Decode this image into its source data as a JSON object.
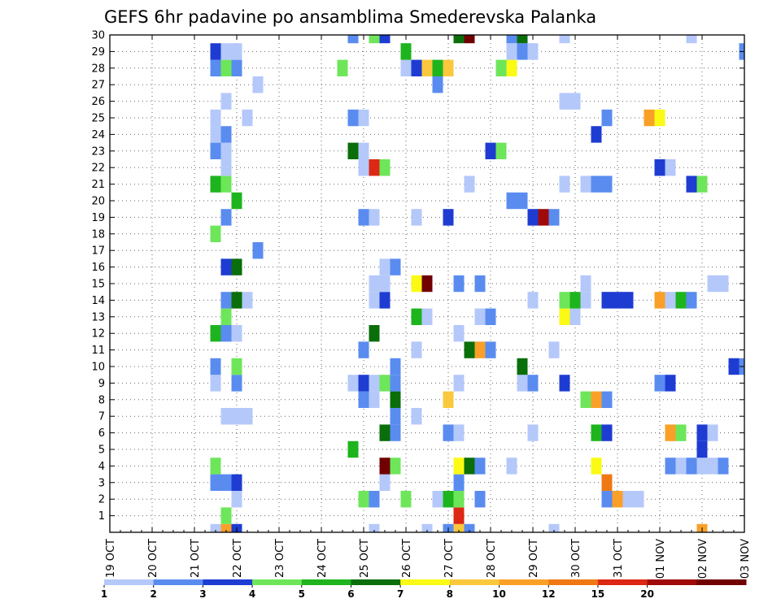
{
  "chart_data": {
    "type": "heatmap",
    "title": "GEFS 6hr padavine po ansamblima Smederevska Palanka",
    "xlabel": "",
    "ylabel": "",
    "x_ticks": [
      "19 OCT",
      "20 OCT",
      "21 OCT",
      "22 OCT",
      "23 OCT",
      "24 OCT",
      "25 OCT",
      "26 OCT",
      "27 OCT",
      "28 OCT",
      "29 OCT",
      "30 OCT",
      "31 OCT",
      "01 NOV",
      "02 NOV",
      "03 NOV"
    ],
    "y_ticks": [
      "1",
      "2",
      "3",
      "4",
      "5",
      "6",
      "7",
      "8",
      "9",
      "10",
      "11",
      "12",
      "13",
      "14",
      "15",
      "16",
      "17",
      "18",
      "19",
      "20",
      "21",
      "22",
      "23",
      "24",
      "25",
      "26",
      "27",
      "28",
      "29",
      "30"
    ],
    "xlim": [
      0,
      15
    ],
    "ylim": [
      0,
      30
    ],
    "x_unit": "days from 19 OCT",
    "y_unit": "ensemble member",
    "grid": true,
    "legend": {
      "placement": "bottom",
      "tick_labels": [
        "1",
        "2",
        "3",
        "4",
        "5",
        "6",
        "7",
        "8",
        "10",
        "12",
        "15",
        "20"
      ],
      "colors": [
        "#b4c8fa",
        "#5a8cf0",
        "#1e3cd2",
        "#6ee65a",
        "#1eb41e",
        "#0a6e0a",
        "#fafa14",
        "#fac83c",
        "#faa028",
        "#f07814",
        "#dc2814",
        "#a00a0a",
        "#700000"
      ]
    },
    "cells": [
      [
        2.5,
        0,
        0
      ],
      [
        2.75,
        0,
        8
      ],
      [
        3.0,
        0,
        2
      ],
      [
        6.25,
        0,
        0
      ],
      [
        7.5,
        0,
        0
      ],
      [
        8.0,
        0,
        1
      ],
      [
        8.25,
        0,
        7
      ],
      [
        8.5,
        0,
        1
      ],
      [
        10.5,
        0,
        0
      ],
      [
        14.0,
        0,
        8
      ],
      [
        2.75,
        1,
        3
      ],
      [
        8.25,
        1,
        10
      ],
      [
        3.0,
        2,
        0
      ],
      [
        6.0,
        2,
        3
      ],
      [
        6.25,
        2,
        1
      ],
      [
        7.0,
        2,
        3
      ],
      [
        7.75,
        2,
        0
      ],
      [
        8.0,
        2,
        4
      ],
      [
        8.25,
        2,
        3
      ],
      [
        8.75,
        2,
        1
      ],
      [
        11.75,
        2,
        1
      ],
      [
        12.0,
        2,
        8
      ],
      [
        12.25,
        2,
        0
      ],
      [
        12.5,
        2,
        0
      ],
      [
        2.5,
        3,
        1
      ],
      [
        2.75,
        3,
        1
      ],
      [
        3.0,
        3,
        2
      ],
      [
        6.5,
        3,
        0
      ],
      [
        8.25,
        3,
        1
      ],
      [
        11.75,
        3,
        9
      ],
      [
        2.5,
        4,
        3
      ],
      [
        6.5,
        4,
        12
      ],
      [
        6.75,
        4,
        3
      ],
      [
        8.25,
        4,
        6
      ],
      [
        8.5,
        4,
        5
      ],
      [
        8.75,
        4,
        1
      ],
      [
        9.5,
        4,
        0
      ],
      [
        11.5,
        4,
        6
      ],
      [
        13.25,
        4,
        1
      ],
      [
        13.5,
        4,
        0
      ],
      [
        13.75,
        4,
        1
      ],
      [
        14.0,
        4,
        0
      ],
      [
        14.25,
        4,
        0
      ],
      [
        14.5,
        4,
        1
      ],
      [
        5.75,
        5,
        4
      ],
      [
        14.0,
        5,
        2
      ],
      [
        6.5,
        6,
        5
      ],
      [
        6.75,
        6,
        1
      ],
      [
        8.0,
        6,
        1
      ],
      [
        8.25,
        6,
        0
      ],
      [
        10.0,
        6,
        0
      ],
      [
        11.5,
        6,
        4
      ],
      [
        11.75,
        6,
        2
      ],
      [
        13.25,
        6,
        8
      ],
      [
        13.5,
        6,
        3
      ],
      [
        14.0,
        6,
        2
      ],
      [
        14.25,
        6,
        0
      ],
      [
        2.75,
        7,
        0
      ],
      [
        3.0,
        7,
        0
      ],
      [
        3.25,
        7,
        0
      ],
      [
        6.75,
        7,
        1
      ],
      [
        7.25,
        7,
        0
      ],
      [
        6.0,
        8,
        1
      ],
      [
        6.25,
        8,
        0
      ],
      [
        6.75,
        8,
        5
      ],
      [
        8.0,
        8,
        7
      ],
      [
        11.25,
        8,
        3
      ],
      [
        11.5,
        8,
        8
      ],
      [
        11.75,
        8,
        1
      ],
      [
        2.5,
        9,
        0
      ],
      [
        3.0,
        9,
        1
      ],
      [
        5.75,
        9,
        0
      ],
      [
        6.0,
        9,
        2
      ],
      [
        6.25,
        9,
        0
      ],
      [
        6.5,
        9,
        3
      ],
      [
        6.75,
        9,
        1
      ],
      [
        8.25,
        9,
        0
      ],
      [
        9.75,
        9,
        0
      ],
      [
        10.0,
        9,
        1
      ],
      [
        10.75,
        9,
        2
      ],
      [
        13.0,
        9,
        1
      ],
      [
        13.25,
        9,
        2
      ],
      [
        2.5,
        10,
        1
      ],
      [
        3.0,
        10,
        3
      ],
      [
        6.75,
        10,
        1
      ],
      [
        9.75,
        10,
        5
      ],
      [
        14.75,
        10,
        2
      ],
      [
        15.0,
        10,
        1
      ],
      [
        6.0,
        11,
        1
      ],
      [
        7.25,
        11,
        0
      ],
      [
        8.5,
        11,
        5
      ],
      [
        8.75,
        11,
        8
      ],
      [
        9.0,
        11,
        1
      ],
      [
        10.5,
        11,
        0
      ],
      [
        2.5,
        12,
        4
      ],
      [
        2.75,
        12,
        1
      ],
      [
        3.0,
        12,
        0
      ],
      [
        6.25,
        12,
        5
      ],
      [
        8.25,
        12,
        0
      ],
      [
        2.75,
        13,
        3
      ],
      [
        7.25,
        13,
        4
      ],
      [
        7.5,
        13,
        0
      ],
      [
        8.75,
        13,
        0
      ],
      [
        9.0,
        13,
        1
      ],
      [
        10.75,
        13,
        6
      ],
      [
        11.0,
        13,
        0
      ],
      [
        2.75,
        14,
        1
      ],
      [
        3.0,
        14,
        5
      ],
      [
        3.25,
        14,
        0
      ],
      [
        6.25,
        14,
        0
      ],
      [
        6.5,
        14,
        2
      ],
      [
        10.0,
        14,
        0
      ],
      [
        10.75,
        14,
        3
      ],
      [
        11.0,
        14,
        4
      ],
      [
        11.25,
        14,
        0
      ],
      [
        11.75,
        14,
        2
      ],
      [
        12.0,
        14,
        2
      ],
      [
        12.25,
        14,
        2
      ],
      [
        13.0,
        14,
        8
      ],
      [
        13.25,
        14,
        0
      ],
      [
        13.5,
        14,
        4
      ],
      [
        13.75,
        14,
        1
      ],
      [
        6.25,
        15,
        0
      ],
      [
        6.5,
        15,
        0
      ],
      [
        7.25,
        15,
        6
      ],
      [
        7.5,
        15,
        12
      ],
      [
        8.25,
        15,
        1
      ],
      [
        8.75,
        15,
        1
      ],
      [
        11.25,
        15,
        0
      ],
      [
        14.25,
        15,
        0
      ],
      [
        14.5,
        15,
        0
      ],
      [
        2.75,
        16,
        2
      ],
      [
        3.0,
        16,
        5
      ],
      [
        6.5,
        16,
        0
      ],
      [
        6.75,
        16,
        1
      ],
      [
        3.5,
        17,
        1
      ],
      [
        2.5,
        18,
        3
      ],
      [
        2.75,
        19,
        1
      ],
      [
        6.0,
        19,
        1
      ],
      [
        6.25,
        19,
        0
      ],
      [
        7.25,
        19,
        0
      ],
      [
        8.0,
        19,
        2
      ],
      [
        10.0,
        19,
        2
      ],
      [
        10.25,
        19,
        11
      ],
      [
        10.5,
        19,
        1
      ],
      [
        3.0,
        20,
        4
      ],
      [
        9.5,
        20,
        1
      ],
      [
        9.75,
        20,
        1
      ],
      [
        2.5,
        21,
        4
      ],
      [
        2.75,
        21,
        3
      ],
      [
        8.5,
        21,
        0
      ],
      [
        10.75,
        21,
        0
      ],
      [
        11.25,
        21,
        0
      ],
      [
        11.5,
        21,
        1
      ],
      [
        11.75,
        21,
        1
      ],
      [
        13.75,
        21,
        2
      ],
      [
        14.0,
        21,
        3
      ],
      [
        2.75,
        22,
        0
      ],
      [
        6.0,
        22,
        0
      ],
      [
        6.25,
        22,
        10
      ],
      [
        6.5,
        22,
        3
      ],
      [
        13.0,
        22,
        2
      ],
      [
        13.25,
        22,
        0
      ],
      [
        2.5,
        23,
        1
      ],
      [
        2.75,
        23,
        0
      ],
      [
        5.75,
        23,
        5
      ],
      [
        6.0,
        23,
        0
      ],
      [
        9.0,
        23,
        2
      ],
      [
        9.25,
        23,
        3
      ],
      [
        2.5,
        24,
        0
      ],
      [
        2.75,
        24,
        1
      ],
      [
        11.5,
        24,
        2
      ],
      [
        2.5,
        25,
        0
      ],
      [
        3.25,
        25,
        0
      ],
      [
        5.75,
        25,
        1
      ],
      [
        6.0,
        25,
        0
      ],
      [
        11.75,
        25,
        1
      ],
      [
        12.75,
        25,
        8
      ],
      [
        13.0,
        25,
        6
      ],
      [
        2.75,
        26,
        0
      ],
      [
        10.75,
        26,
        0
      ],
      [
        11.0,
        26,
        0
      ],
      [
        3.5,
        27,
        0
      ],
      [
        7.75,
        27,
        1
      ],
      [
        2.5,
        28,
        1
      ],
      [
        2.75,
        28,
        3
      ],
      [
        3.0,
        28,
        1
      ],
      [
        5.5,
        28,
        3
      ],
      [
        7.0,
        28,
        0
      ],
      [
        7.25,
        28,
        2
      ],
      [
        7.5,
        28,
        7
      ],
      [
        7.75,
        28,
        4
      ],
      [
        8.0,
        28,
        7
      ],
      [
        9.25,
        28,
        3
      ],
      [
        9.5,
        28,
        6
      ],
      [
        2.5,
        29,
        2
      ],
      [
        2.75,
        29,
        0
      ],
      [
        3.0,
        29,
        0
      ],
      [
        7.0,
        29,
        4
      ],
      [
        9.5,
        29,
        0
      ],
      [
        9.75,
        29,
        1
      ],
      [
        10.0,
        29,
        0
      ],
      [
        15.0,
        29,
        1
      ],
      [
        5.75,
        30,
        1
      ],
      [
        6.25,
        30,
        3
      ],
      [
        6.5,
        30,
        2
      ],
      [
        8.25,
        30,
        5
      ],
      [
        8.5,
        30,
        12
      ],
      [
        9.5,
        30,
        1
      ],
      [
        9.75,
        30,
        5
      ],
      [
        10.75,
        30,
        0
      ],
      [
        13.75,
        30,
        0
      ]
    ]
  }
}
